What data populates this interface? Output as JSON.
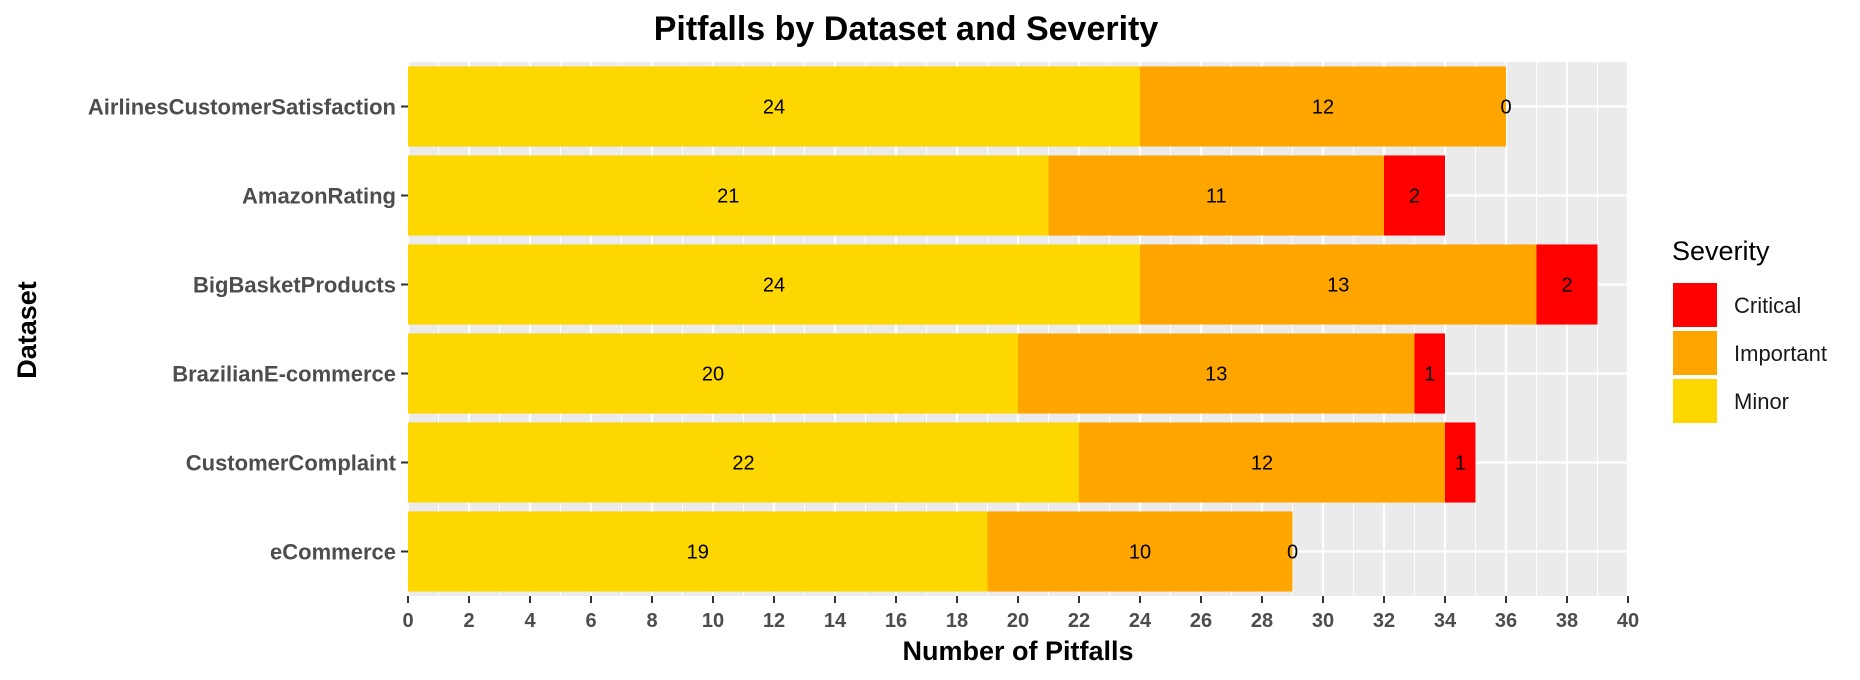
{
  "chart_data": {
    "type": "bar",
    "orientation": "horizontal",
    "stacked": true,
    "title": "Pitfalls by Dataset and Severity",
    "xlabel": "Number of Pitfalls",
    "ylabel": "Dataset",
    "xlim": [
      0,
      40
    ],
    "x_ticks": [
      0,
      2,
      4,
      6,
      8,
      10,
      12,
      14,
      16,
      18,
      20,
      22,
      24,
      26,
      28,
      30,
      32,
      34,
      36,
      38,
      40
    ],
    "grid": true,
    "legend_position": "right",
    "legend_title": "Severity",
    "legend_order": [
      "Critical",
      "Important",
      "Minor"
    ],
    "categories": [
      "AirlinesCustomerSatisfaction",
      "AmazonRating",
      "BigBasketProducts",
      "BrazilianE-commerce",
      "CustomerComplaint",
      "eCommerce"
    ],
    "series": [
      {
        "name": "Minor",
        "color": "#FFD700",
        "values": [
          24,
          21,
          24,
          20,
          22,
          19
        ]
      },
      {
        "name": "Important",
        "color": "#FFA500",
        "values": [
          12,
          11,
          13,
          13,
          12,
          10
        ]
      },
      {
        "name": "Critical",
        "color": "#FF0000",
        "values": [
          0,
          2,
          2,
          1,
          1,
          0
        ]
      }
    ],
    "panel_background": "#EBEBEB",
    "grid_color": "#FFFFFF"
  }
}
